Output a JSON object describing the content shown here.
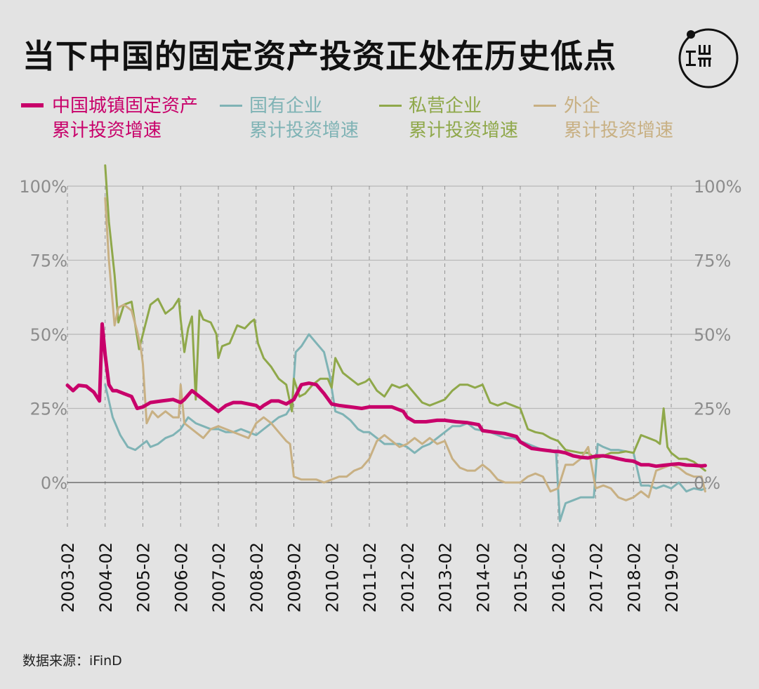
{
  "title": "当下中国的固定资产投资正处在历史低点",
  "source": "数据来源：iFinD",
  "colors": {
    "background": "#e3e3e3",
    "total": "#c8006a",
    "state": "#7fb3b5",
    "private": "#8fa84a",
    "foreign": "#c8b083",
    "grid": "#b9b9b9",
    "zero": "#8c8c8c",
    "tick": "#8c8c8c"
  },
  "legend": [
    {
      "line1": "中国城镇固定资产",
      "line2": "累计投资增速",
      "color": "#c8006a"
    },
    {
      "line1": "国有企业",
      "line2": "累计投资增速",
      "color": "#7fb3b5"
    },
    {
      "line1": "私营企业",
      "line2": "累计投资增速",
      "color": "#8fa84a"
    },
    {
      "line1": "外企",
      "line2": "累计投资增速",
      "color": "#c8b083"
    }
  ],
  "chart_data": {
    "type": "line",
    "title": "当下中国的固定资产投资正处在历史低点",
    "xlabel": "",
    "ylabel": "",
    "ylim": [
      -20,
      105
    ],
    "yticks": [
      0,
      25,
      50,
      75,
      100
    ],
    "ytick_labels": [
      "0%",
      "25%",
      "50%",
      "75%",
      "100%"
    ],
    "xlim": [
      2003.0,
      2020.25
    ],
    "xtick_labels": [
      "2003-02",
      "2004-02",
      "2005-02",
      "2006-02",
      "2007-02",
      "2008-02",
      "2009-02",
      "2010-02",
      "2011-02",
      "2012-02",
      "2013-02",
      "2014-02",
      "2015-02",
      "2016-02",
      "2017-02",
      "2018-02",
      "2019-02"
    ],
    "series": [
      {
        "name": "中国城镇固定资产累计投资增速",
        "color": "#c8006a",
        "width": 5,
        "x": [
          2003.0,
          2003.15,
          2003.3,
          2003.5,
          2003.7,
          2003.85,
          2003.92,
          2004.0,
          2004.1,
          2004.2,
          2004.3,
          2004.5,
          2004.7,
          2004.85,
          2005.0,
          2005.2,
          2005.5,
          2005.8,
          2006.0,
          2006.1,
          2006.3,
          2006.5,
          2006.7,
          2006.9,
          2007.0,
          2007.2,
          2007.4,
          2007.6,
          2007.8,
          2008.0,
          2008.1,
          2008.2,
          2008.4,
          2008.6,
          2008.8,
          2009.0,
          2009.2,
          2009.4,
          2009.6,
          2009.8,
          2010.0,
          2010.2,
          2010.5,
          2010.8,
          2011.0,
          2011.3,
          2011.6,
          2011.9,
          2012.0,
          2012.2,
          2012.5,
          2012.8,
          2013.0,
          2013.3,
          2013.6,
          2013.9,
          2014.0,
          2014.3,
          2014.6,
          2014.9,
          2015.0,
          2015.3,
          2015.6,
          2015.9,
          2016.0,
          2016.2,
          2016.4,
          2016.6,
          2016.8,
          2017.0,
          2017.2,
          2017.4,
          2017.6,
          2017.8,
          2018.0,
          2018.2,
          2018.4,
          2018.6,
          2018.8,
          2019.0,
          2019.2,
          2019.4,
          2019.6,
          2019.8,
          2019.9
        ],
        "values": [
          32.8,
          31,
          32.8,
          32.5,
          30.5,
          27.5,
          53.5,
          43,
          33,
          31,
          31,
          30,
          29,
          25,
          25.5,
          27,
          27.5,
          28,
          27,
          28,
          31,
          29,
          27,
          25,
          24,
          26,
          27,
          27,
          26.5,
          26,
          25,
          26,
          27.5,
          27.5,
          26.5,
          28,
          33,
          33.5,
          33,
          30,
          26.5,
          26,
          25.5,
          25,
          25.5,
          25.5,
          25.5,
          24,
          22,
          20.5,
          20.5,
          21,
          21,
          20.5,
          20.2,
          19.5,
          17.5,
          17,
          16.5,
          15.5,
          13.7,
          11.5,
          11,
          10.5,
          10.5,
          10,
          9,
          8.5,
          8.3,
          8.9,
          9,
          8.6,
          8,
          7.5,
          7.2,
          6,
          6,
          5.5,
          5.8,
          6.1,
          6.3,
          5.9,
          5.8,
          5.6,
          5.7
        ]
      },
      {
        "name": "国有企业累计投资增速",
        "color": "#7fb3b5",
        "width": 3,
        "x": [
          2004.0,
          2004.2,
          2004.4,
          2004.6,
          2004.8,
          2005.0,
          2005.1,
          2005.2,
          2005.4,
          2005.6,
          2005.8,
          2006.0,
          2006.2,
          2006.4,
          2006.6,
          2006.8,
          2007.0,
          2007.2,
          2007.4,
          2007.6,
          2007.8,
          2008.0,
          2008.2,
          2008.4,
          2008.6,
          2008.8,
          2008.95,
          2009.05,
          2009.2,
          2009.4,
          2009.6,
          2009.8,
          2009.95,
          2010.1,
          2010.3,
          2010.5,
          2010.7,
          2010.85,
          2011.0,
          2011.2,
          2011.4,
          2011.6,
          2011.8,
          2012.0,
          2012.2,
          2012.4,
          2012.6,
          2012.8,
          2013.0,
          2013.2,
          2013.4,
          2013.6,
          2013.8,
          2014.0,
          2014.2,
          2014.4,
          2014.6,
          2014.8,
          2015.0,
          2015.2,
          2015.4,
          2015.6,
          2015.8,
          2015.95,
          2016.05,
          2016.2,
          2016.4,
          2016.6,
          2016.8,
          2016.95,
          2017.05,
          2017.2,
          2017.4,
          2017.6,
          2017.8,
          2018.0,
          2018.2,
          2018.4,
          2018.6,
          2018.8,
          2019.0,
          2019.2,
          2019.4,
          2019.6,
          2019.8,
          2019.9
        ],
        "values": [
          33,
          22,
          16,
          12,
          11,
          13,
          14,
          12,
          13,
          15,
          16,
          18,
          22,
          20,
          19,
          18,
          18,
          17,
          17,
          18,
          17,
          16,
          18,
          20,
          22,
          23,
          26,
          44,
          46,
          50,
          47,
          44,
          36,
          24,
          23,
          21,
          18,
          17,
          17,
          15,
          13,
          13,
          13,
          12,
          10,
          12,
          13,
          15,
          17,
          19,
          19,
          20,
          18,
          17.5,
          17,
          16,
          15,
          15,
          14,
          13,
          12,
          11,
          11,
          10,
          -13,
          -7,
          -6,
          -5,
          -5,
          -5,
          13,
          12,
          11,
          11,
          10.5,
          10,
          -1,
          -1,
          -2,
          -1,
          -2,
          0,
          -3,
          -2,
          -2.5,
          -2
        ]
      },
      {
        "name": "私营企业累计投资增速",
        "color": "#8fa84a",
        "width": 3,
        "x": [
          2004.0,
          2004.1,
          2004.25,
          2004.35,
          2004.5,
          2004.7,
          2004.9,
          2005.0,
          2005.2,
          2005.4,
          2005.6,
          2005.8,
          2005.95,
          2006.0,
          2006.1,
          2006.2,
          2006.3,
          2006.4,
          2006.5,
          2006.6,
          2006.8,
          2006.95,
          2007.0,
          2007.1,
          2007.3,
          2007.5,
          2007.7,
          2007.85,
          2007.95,
          2008.05,
          2008.2,
          2008.4,
          2008.6,
          2008.8,
          2008.95,
          2009.0,
          2009.15,
          2009.3,
          2009.5,
          2009.7,
          2009.9,
          2010.0,
          2010.1,
          2010.3,
          2010.5,
          2010.7,
          2010.9,
          2011.0,
          2011.2,
          2011.4,
          2011.6,
          2011.8,
          2012.0,
          2012.2,
          2012.4,
          2012.6,
          2012.8,
          2013.0,
          2013.2,
          2013.4,
          2013.6,
          2013.8,
          2014.0,
          2014.2,
          2014.4,
          2014.6,
          2014.8,
          2015.0,
          2015.2,
          2015.4,
          2015.6,
          2015.8,
          2016.0,
          2016.2,
          2016.4,
          2016.6,
          2016.8,
          2017.0,
          2017.2,
          2017.4,
          2017.6,
          2017.8,
          2018.0,
          2018.2,
          2018.4,
          2018.6,
          2018.7,
          2018.8,
          2018.9,
          2019.0,
          2019.2,
          2019.4,
          2019.6,
          2019.8,
          2019.9
        ],
        "values": [
          107,
          88,
          70,
          54,
          60,
          61,
          45,
          50,
          60,
          62,
          57,
          59,
          62,
          55,
          44,
          52,
          56,
          28,
          58,
          55,
          54,
          50,
          42,
          46,
          47,
          53,
          52,
          54,
          55,
          47,
          42,
          39,
          35,
          33,
          24,
          35,
          29,
          30,
          33,
          35,
          35,
          32,
          42,
          37,
          35,
          33,
          34,
          35,
          31,
          29,
          33,
          32,
          33,
          30,
          27,
          26,
          27,
          28,
          31,
          33,
          33,
          32,
          33,
          27,
          26,
          27,
          26,
          25,
          18,
          17,
          16.5,
          15,
          14,
          11,
          10.5,
          10,
          10,
          8,
          9,
          10,
          10,
          10.5,
          10,
          16,
          15,
          14,
          13,
          25,
          12,
          10,
          8,
          8,
          7,
          5,
          4
        ]
      },
      {
        "name": "外企累计投资增速",
        "color": "#c8b083",
        "width": 3,
        "x": [
          2004.0,
          2004.1,
          2004.25,
          2004.35,
          2004.5,
          2004.7,
          2004.85,
          2004.95,
          2005.0,
          2005.1,
          2005.25,
          2005.4,
          2005.6,
          2005.8,
          2005.95,
          2006.0,
          2006.1,
          2006.2,
          2006.4,
          2006.6,
          2006.8,
          2007.0,
          2007.2,
          2007.4,
          2007.6,
          2007.8,
          2008.0,
          2008.2,
          2008.4,
          2008.6,
          2008.8,
          2008.9,
          2009.0,
          2009.2,
          2009.4,
          2009.6,
          2009.8,
          2010.0,
          2010.2,
          2010.4,
          2010.6,
          2010.8,
          2011.0,
          2011.2,
          2011.4,
          2011.6,
          2011.8,
          2012.0,
          2012.2,
          2012.4,
          2012.6,
          2012.8,
          2013.0,
          2013.2,
          2013.4,
          2013.6,
          2013.8,
          2014.0,
          2014.2,
          2014.4,
          2014.6,
          2014.8,
          2015.0,
          2015.2,
          2015.4,
          2015.6,
          2015.8,
          2016.0,
          2016.2,
          2016.4,
          2016.6,
          2016.8,
          2017.0,
          2017.2,
          2017.4,
          2017.6,
          2017.8,
          2018.0,
          2018.2,
          2018.4,
          2018.6,
          2018.8,
          2019.0,
          2019.2,
          2019.4,
          2019.6,
          2019.8,
          2019.9
        ],
        "values": [
          96,
          75,
          53,
          59,
          60,
          58,
          51,
          45,
          40,
          20,
          24,
          22,
          24,
          22,
          22,
          33,
          20,
          19,
          17,
          15,
          18,
          19,
          18,
          17,
          16,
          15,
          20,
          22,
          20,
          17,
          14,
          13,
          2,
          1,
          1,
          1,
          0,
          1,
          2,
          2,
          4,
          5,
          8,
          14,
          16,
          14,
          12,
          13,
          15,
          13,
          15,
          13,
          14,
          8,
          5,
          4,
          4,
          6,
          4,
          1,
          0,
          0,
          0,
          2,
          3,
          2,
          -3,
          -2,
          6,
          6,
          8,
          12,
          -2,
          -1,
          -2,
          -5,
          -6,
          -5,
          -3,
          -5,
          4,
          5,
          6,
          5,
          3,
          2,
          2,
          -3
        ]
      }
    ]
  }
}
